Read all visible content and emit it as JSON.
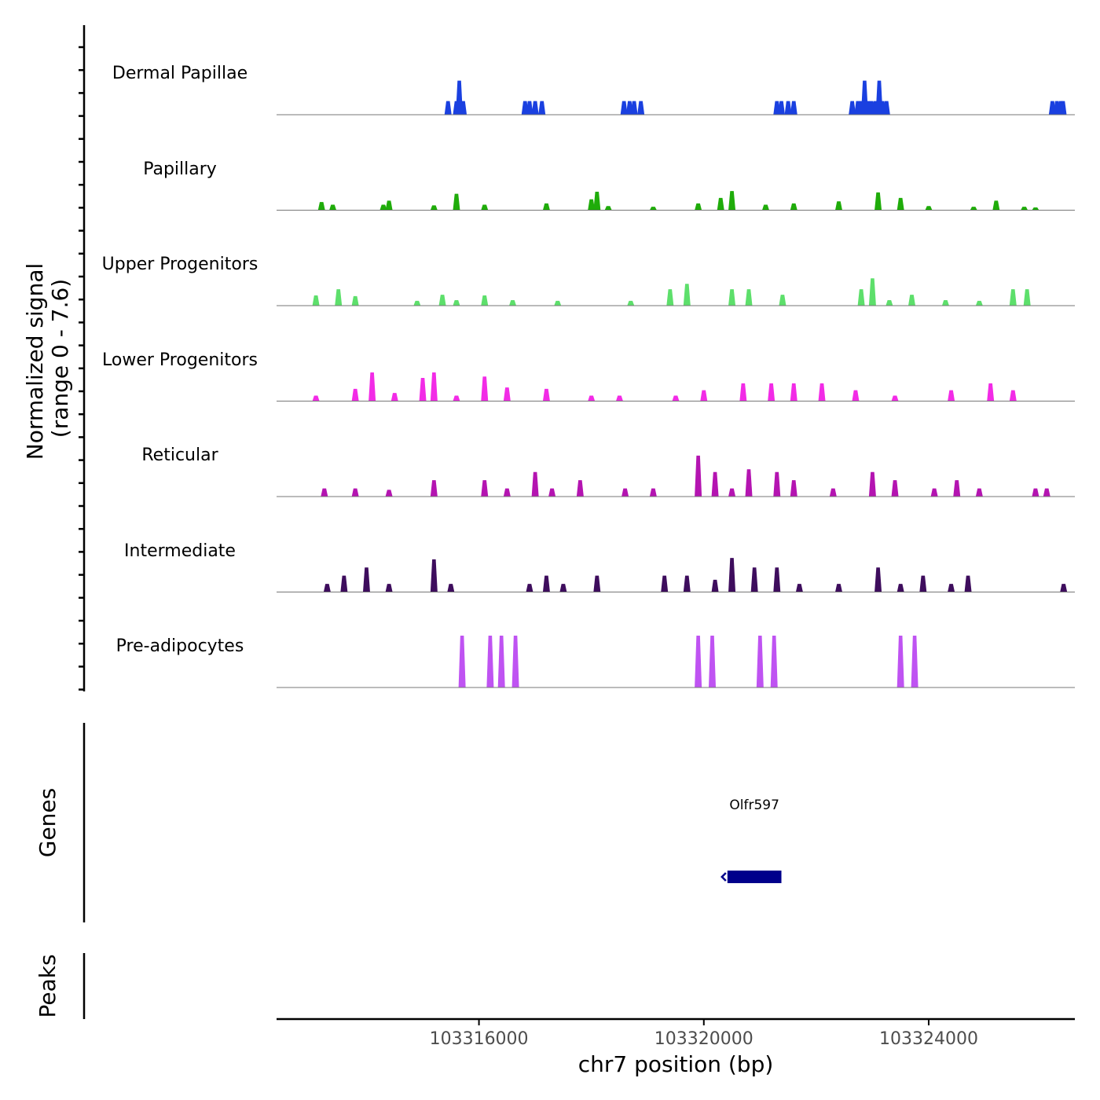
{
  "chart_data": {
    "type": "area",
    "title": "",
    "ylabel_line1": "Normalized signal",
    "ylabel_line2": "(range 0 - 7.6)",
    "ylim": [
      0,
      7.6
    ],
    "xlabel": "chr7 position (bp)",
    "xlim": [
      103312400,
      103326600
    ],
    "xticks": [
      103316000,
      103320000,
      103324000
    ],
    "xtick_labels": [
      "103316000",
      "103320000",
      "103324000"
    ],
    "genes_label": "Genes",
    "peaks_label": "Peaks",
    "genes": [
      {
        "name": "Olfr597",
        "start": 103320420,
        "end": 103321380,
        "strand": "-",
        "color": "#00008b"
      }
    ],
    "series": [
      {
        "name": "Dermal Papillae",
        "color": "#1a40e0",
        "values": [
          [
            103315450,
            2.0
          ],
          [
            103315600,
            2.0
          ],
          [
            103315650,
            5.0
          ],
          [
            103315720,
            2.0
          ],
          [
            103315800,
            0
          ],
          [
            103316820,
            2.0
          ],
          [
            103316900,
            2.0
          ],
          [
            103317000,
            2.0
          ],
          [
            103317120,
            2.0
          ],
          [
            103318580,
            2.0
          ],
          [
            103318680,
            2.0
          ],
          [
            103318760,
            2.0
          ],
          [
            103318880,
            2.0
          ],
          [
            103321300,
            2.0
          ],
          [
            103321380,
            2.0
          ],
          [
            103321500,
            2.0
          ],
          [
            103321600,
            2.0
          ],
          [
            103322640,
            2.0
          ],
          [
            103322740,
            2.0
          ],
          [
            103322800,
            2.0
          ],
          [
            103322860,
            5.0
          ],
          [
            103322920,
            2.0
          ],
          [
            103322980,
            2.0
          ],
          [
            103323050,
            2.0
          ],
          [
            103323120,
            5.0
          ],
          [
            103323180,
            2.0
          ],
          [
            103323250,
            2.0
          ],
          [
            103326200,
            2.0
          ],
          [
            103326280,
            2.0
          ],
          [
            103326350,
            2.0
          ],
          [
            103326390,
            2.0
          ]
        ]
      },
      {
        "name": "Papillary",
        "color": "#1fac0a",
        "values": [
          [
            103313200,
            1.2
          ],
          [
            103313400,
            0.8
          ],
          [
            103314300,
            0.8
          ],
          [
            103314400,
            1.4
          ],
          [
            103315200,
            0.7
          ],
          [
            103315600,
            2.4
          ],
          [
            103316100,
            0.8
          ],
          [
            103317200,
            1.0
          ],
          [
            103318000,
            1.6
          ],
          [
            103318100,
            2.7
          ],
          [
            103318300,
            0.6
          ],
          [
            103319100,
            0.5
          ],
          [
            103319900,
            1.0
          ],
          [
            103320300,
            1.8
          ],
          [
            103320500,
            2.8
          ],
          [
            103321100,
            0.8
          ],
          [
            103321600,
            1.0
          ],
          [
            103322400,
            1.3
          ],
          [
            103323100,
            2.6
          ],
          [
            103323500,
            1.8
          ],
          [
            103324000,
            0.6
          ],
          [
            103324800,
            0.5
          ],
          [
            103325200,
            1.4
          ],
          [
            103325700,
            0.5
          ],
          [
            103325900,
            0.4
          ]
        ]
      },
      {
        "name": "Upper Progenitors",
        "color": "#5ddf6b",
        "values": [
          [
            103313100,
            1.5
          ],
          [
            103313500,
            2.4
          ],
          [
            103313800,
            1.4
          ],
          [
            103314900,
            0.7
          ],
          [
            103315350,
            1.6
          ],
          [
            103315600,
            0.8
          ],
          [
            103316100,
            1.5
          ],
          [
            103316600,
            0.8
          ],
          [
            103317400,
            0.7
          ],
          [
            103318700,
            0.7
          ],
          [
            103319400,
            2.4
          ],
          [
            103319700,
            3.2
          ],
          [
            103320500,
            2.4
          ],
          [
            103320800,
            2.4
          ],
          [
            103321400,
            1.6
          ],
          [
            103322800,
            2.4
          ],
          [
            103323000,
            4.0
          ],
          [
            103323300,
            0.8
          ],
          [
            103323700,
            1.6
          ],
          [
            103324300,
            0.8
          ],
          [
            103324900,
            0.7
          ],
          [
            103325500,
            2.4
          ],
          [
            103325750,
            2.4
          ]
        ]
      },
      {
        "name": "Lower Progenitors",
        "color": "#f22be6",
        "values": [
          [
            103313100,
            0.8
          ],
          [
            103313800,
            1.8
          ],
          [
            103314100,
            4.2
          ],
          [
            103314500,
            1.2
          ],
          [
            103315000,
            3.4
          ],
          [
            103315200,
            4.2
          ],
          [
            103315600,
            0.8
          ],
          [
            103316100,
            3.6
          ],
          [
            103316500,
            2.0
          ],
          [
            103317200,
            1.8
          ],
          [
            103318000,
            0.8
          ],
          [
            103318500,
            0.8
          ],
          [
            103319500,
            0.8
          ],
          [
            103320000,
            1.6
          ],
          [
            103320700,
            2.6
          ],
          [
            103321200,
            2.6
          ],
          [
            103321600,
            2.6
          ],
          [
            103322100,
            2.6
          ],
          [
            103322700,
            1.6
          ],
          [
            103323400,
            0.8
          ],
          [
            103324400,
            1.6
          ],
          [
            103325100,
            2.6
          ],
          [
            103325500,
            1.6
          ]
        ]
      },
      {
        "name": "Reticular",
        "color": "#b414b1",
        "values": [
          [
            103313250,
            1.2
          ],
          [
            103313800,
            1.2
          ],
          [
            103314400,
            1.0
          ],
          [
            103315200,
            2.4
          ],
          [
            103316100,
            2.4
          ],
          [
            103316500,
            1.2
          ],
          [
            103317000,
            3.6
          ],
          [
            103317300,
            1.2
          ],
          [
            103317800,
            2.4
          ],
          [
            103318600,
            1.2
          ],
          [
            103319100,
            1.2
          ],
          [
            103319900,
            6.0
          ],
          [
            103320200,
            3.6
          ],
          [
            103320500,
            1.2
          ],
          [
            103320800,
            4.0
          ],
          [
            103321300,
            3.6
          ],
          [
            103321600,
            2.4
          ],
          [
            103322300,
            1.2
          ],
          [
            103323000,
            3.6
          ],
          [
            103323400,
            2.4
          ],
          [
            103324100,
            1.2
          ],
          [
            103324500,
            2.4
          ],
          [
            103324900,
            1.2
          ],
          [
            103325900,
            1.2
          ],
          [
            103326100,
            1.2
          ]
        ]
      },
      {
        "name": "Intermediate",
        "color": "#3e0d5d",
        "values": [
          [
            103313300,
            1.2
          ],
          [
            103313600,
            2.4
          ],
          [
            103314000,
            3.6
          ],
          [
            103314400,
            1.2
          ],
          [
            103315200,
            4.8
          ],
          [
            103315500,
            1.2
          ],
          [
            103316900,
            1.2
          ],
          [
            103317200,
            2.4
          ],
          [
            103317500,
            1.2
          ],
          [
            103318100,
            2.4
          ],
          [
            103319300,
            2.4
          ],
          [
            103319700,
            2.4
          ],
          [
            103320200,
            1.8
          ],
          [
            103320500,
            5.0
          ],
          [
            103320900,
            3.6
          ],
          [
            103321300,
            3.6
          ],
          [
            103321700,
            1.2
          ],
          [
            103322400,
            1.2
          ],
          [
            103323100,
            3.6
          ],
          [
            103323500,
            1.2
          ],
          [
            103323900,
            2.4
          ],
          [
            103324400,
            1.2
          ],
          [
            103324700,
            2.4
          ],
          [
            103326400,
            1.2
          ]
        ]
      },
      {
        "name": "Pre-adipocytes",
        "color": "#bf53f2",
        "values": [
          [
            103315700,
            7.6
          ],
          [
            103316200,
            7.6
          ],
          [
            103316400,
            7.6
          ],
          [
            103316650,
            7.6
          ],
          [
            103319900,
            7.6
          ],
          [
            103320150,
            7.6
          ],
          [
            103321000,
            7.6
          ],
          [
            103321250,
            7.6
          ],
          [
            103323500,
            7.6
          ],
          [
            103323750,
            7.6
          ]
        ]
      }
    ]
  }
}
